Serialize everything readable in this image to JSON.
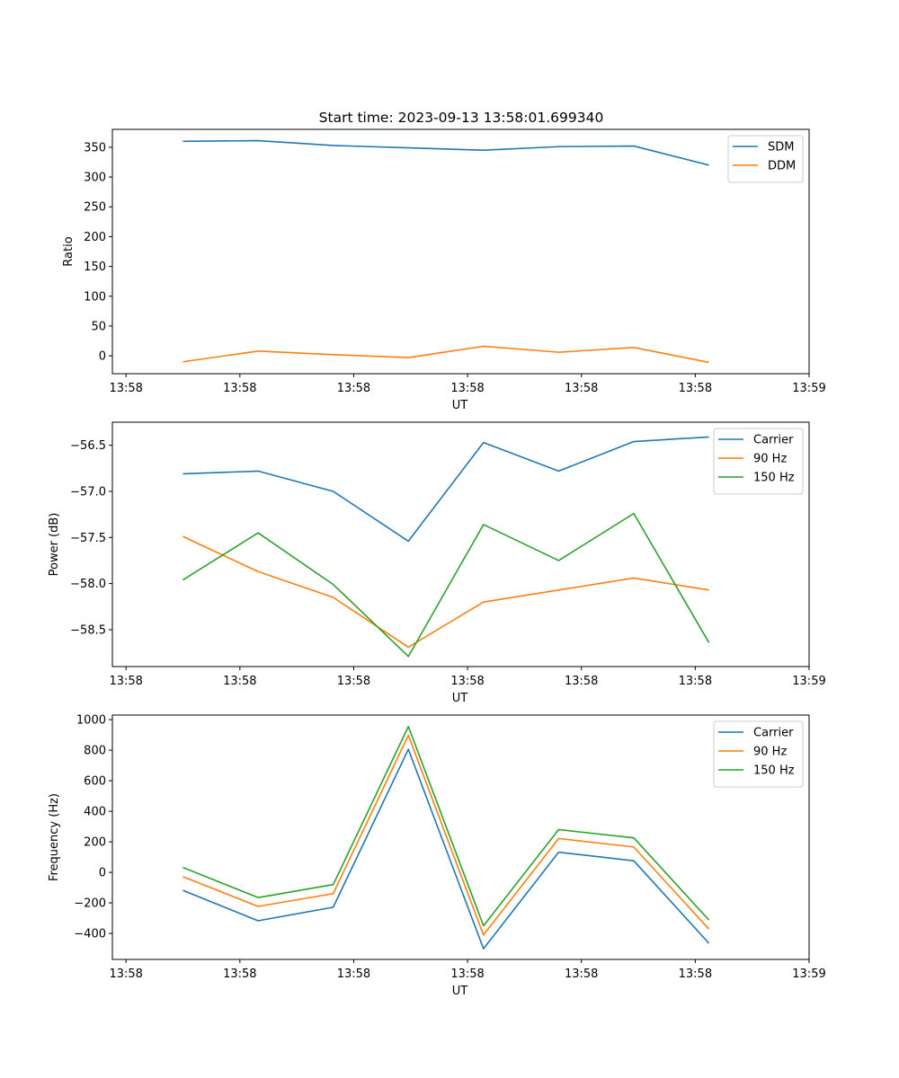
{
  "figure": {
    "title": "Start time: 2023-09-13 13:58:01.699340"
  },
  "colors": {
    "blue": "#1f77b4",
    "orange": "#ff7f0e",
    "green": "#2ca02c"
  },
  "chart_data": [
    {
      "type": "line",
      "xlabel": "UT",
      "ylabel": "Ratio",
      "x_tick_labels": [
        "13:58",
        "13:58",
        "13:58",
        "13:58",
        "13:58",
        "13:58",
        "13:59"
      ],
      "x_ticks": [
        0,
        1,
        2,
        3,
        4,
        5,
        6
      ],
      "xlim": [
        -0.12,
        6.0
      ],
      "x": [
        0.5,
        1.16,
        1.82,
        2.48,
        3.14,
        3.8,
        4.46,
        5.12
      ],
      "ylim": [
        -30,
        380
      ],
      "y_ticks": [
        0,
        50,
        100,
        150,
        200,
        250,
        300,
        350
      ],
      "series": [
        {
          "name": "SDM",
          "color": "#1f77b4",
          "values": [
            360,
            361,
            353,
            349,
            345,
            351,
            352,
            320
          ]
        },
        {
          "name": "DDM",
          "color": "#ff7f0e",
          "values": [
            -10,
            8,
            2,
            -3,
            16,
            6,
            14,
            -11
          ]
        }
      ],
      "legend": "upper right"
    },
    {
      "type": "line",
      "xlabel": "UT",
      "ylabel": "Power (dB)",
      "x_tick_labels": [
        "13:58",
        "13:58",
        "13:58",
        "13:58",
        "13:58",
        "13:58",
        "13:59"
      ],
      "x_ticks": [
        0,
        1,
        2,
        3,
        4,
        5,
        6
      ],
      "xlim": [
        -0.12,
        6.0
      ],
      "x": [
        0.5,
        1.16,
        1.82,
        2.48,
        3.14,
        3.8,
        4.46,
        5.12
      ],
      "ylim": [
        -58.9,
        -56.25
      ],
      "y_ticks": [
        -58.5,
        -58.0,
        -57.5,
        -57.0,
        -56.5
      ],
      "y_tick_labels": [
        "−58.5",
        "−58.0",
        "−57.5",
        "−57.0",
        "−56.5"
      ],
      "series": [
        {
          "name": "Carrier",
          "color": "#1f77b4",
          "values": [
            -56.81,
            -56.78,
            -57.0,
            -57.54,
            -56.47,
            -56.78,
            -56.46,
            -56.41
          ]
        },
        {
          "name": "90 Hz",
          "color": "#ff7f0e",
          "values": [
            -57.49,
            -57.87,
            -58.15,
            -58.69,
            -58.2,
            -58.07,
            -57.94,
            -58.07
          ]
        },
        {
          "name": "150 Hz",
          "color": "#2ca02c",
          "values": [
            -57.96,
            -57.45,
            -58.01,
            -58.79,
            -57.36,
            -57.75,
            -57.24,
            -58.64
          ]
        }
      ],
      "legend": "upper right"
    },
    {
      "type": "line",
      "xlabel": "UT",
      "ylabel": "Frequency (Hz)",
      "x_tick_labels": [
        "13:58",
        "13:58",
        "13:58",
        "13:58",
        "13:58",
        "13:58",
        "13:59"
      ],
      "x_ticks": [
        0,
        1,
        2,
        3,
        4,
        5,
        6
      ],
      "xlim": [
        -0.12,
        6.0
      ],
      "x": [
        0.5,
        1.16,
        1.82,
        2.48,
        3.14,
        3.8,
        4.46,
        5.12
      ],
      "ylim": [
        -570,
        1030
      ],
      "y_ticks": [
        -400,
        -200,
        0,
        200,
        400,
        600,
        800,
        1000
      ],
      "y_tick_labels": [
        "−400",
        "−200",
        "0",
        "200",
        "400",
        "600",
        "800",
        "1000"
      ],
      "series": [
        {
          "name": "Carrier",
          "color": "#1f77b4",
          "values": [
            -118,
            -317,
            -228,
            806,
            -500,
            132,
            76,
            -464
          ]
        },
        {
          "name": "90 Hz",
          "color": "#ff7f0e",
          "values": [
            -28,
            -223,
            -139,
            898,
            -410,
            222,
            166,
            -371
          ]
        },
        {
          "name": "150 Hz",
          "color": "#2ca02c",
          "values": [
            32,
            -165,
            -80,
            955,
            -350,
            280,
            226,
            -312
          ]
        }
      ],
      "legend": "upper right"
    }
  ]
}
